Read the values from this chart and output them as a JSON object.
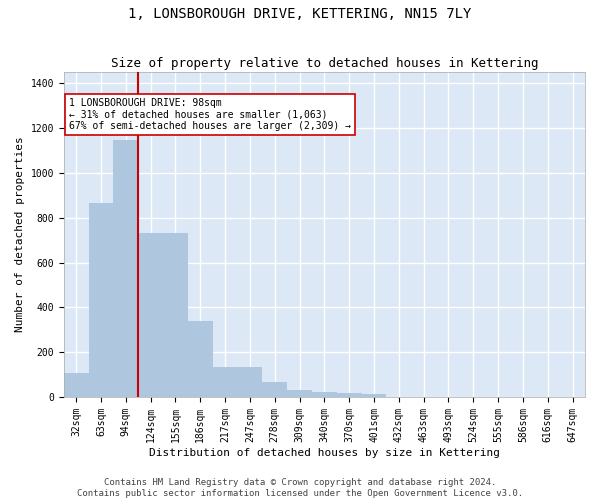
{
  "title": "1, LONSBOROUGH DRIVE, KETTERING, NN15 7LY",
  "subtitle": "Size of property relative to detached houses in Kettering",
  "xlabel": "Distribution of detached houses by size in Kettering",
  "ylabel": "Number of detached properties",
  "categories": [
    "32sqm",
    "63sqm",
    "94sqm",
    "124sqm",
    "155sqm",
    "186sqm",
    "217sqm",
    "247sqm",
    "278sqm",
    "309sqm",
    "340sqm",
    "370sqm",
    "401sqm",
    "432sqm",
    "463sqm",
    "493sqm",
    "524sqm",
    "555sqm",
    "586sqm",
    "616sqm",
    "647sqm"
  ],
  "values": [
    105,
    865,
    1145,
    730,
    730,
    340,
    135,
    135,
    68,
    30,
    22,
    17,
    12,
    0,
    0,
    0,
    0,
    0,
    0,
    0,
    0
  ],
  "bar_color": "#aec6de",
  "bar_edge_color": "#aec6de",
  "property_line_color": "#cc0000",
  "annotation_text": "1 LONSBOROUGH DRIVE: 98sqm\n← 31% of detached houses are smaller (1,063)\n67% of semi-detached houses are larger (2,309) →",
  "annotation_box_facecolor": "#ffffff",
  "annotation_box_edgecolor": "#cc0000",
  "ylim": [
    0,
    1450
  ],
  "yticks": [
    0,
    200,
    400,
    600,
    800,
    1000,
    1200,
    1400
  ],
  "fig_facecolor": "#ffffff",
  "plot_bg_color": "#dce8f5",
  "grid_color": "#ffffff",
  "title_fontsize": 10,
  "subtitle_fontsize": 9,
  "axis_label_fontsize": 8,
  "tick_fontsize": 7,
  "annotation_fontsize": 7,
  "footer_text": "Contains HM Land Registry data © Crown copyright and database right 2024.\nContains public sector information licensed under the Open Government Licence v3.0.",
  "footer_fontsize": 6.5
}
